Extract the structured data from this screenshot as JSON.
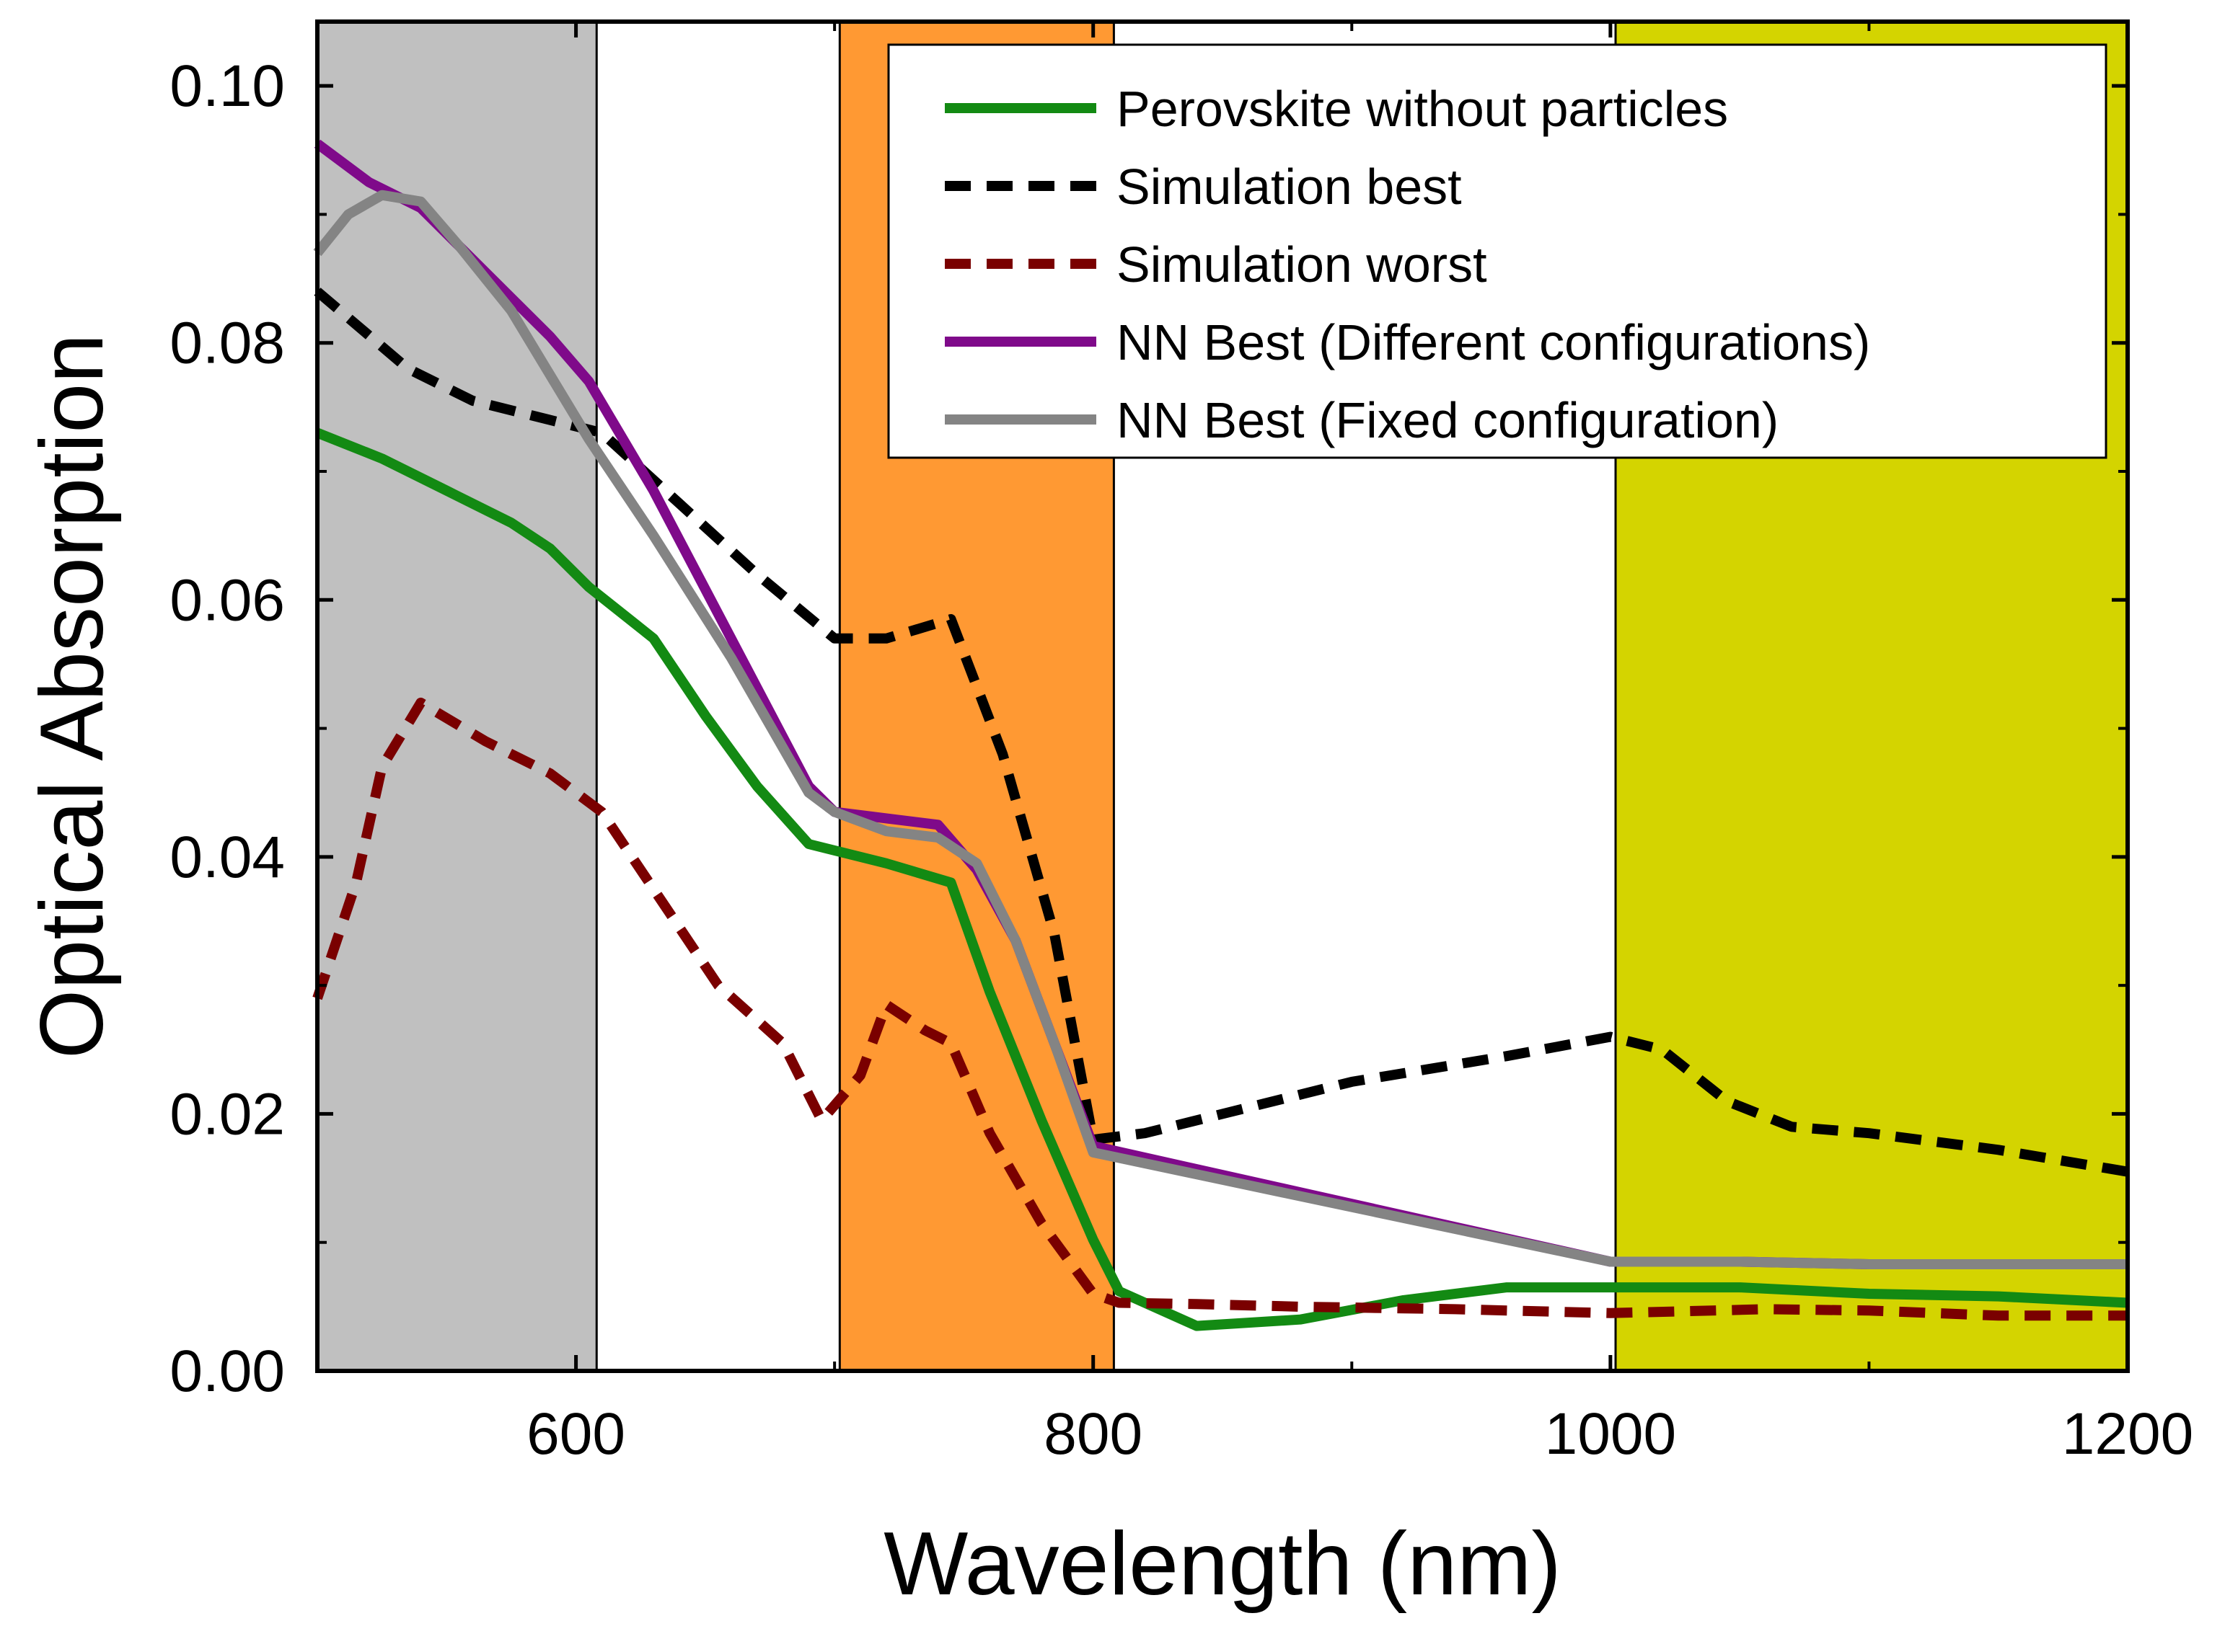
{
  "chart_data": {
    "type": "line",
    "title": "",
    "xlabel": "Wavelength (nm)",
    "ylabel": "Optical Absorption",
    "xlim": [
      500,
      1200
    ],
    "ylim": [
      0,
      0.105
    ],
    "x_ticks": [
      600,
      800,
      1000,
      1200
    ],
    "x_tick_labels": [
      "600",
      "800",
      "1000",
      "1200"
    ],
    "y_ticks": [
      0.0,
      0.02,
      0.04,
      0.06,
      0.08,
      0.1
    ],
    "y_tick_labels": [
      "0.00",
      "0.02",
      "0.04",
      "0.06",
      "0.08",
      "0.10"
    ],
    "grid": false,
    "legend_position": "top-right",
    "shaded_bands": [
      {
        "name": "gray-band",
        "x_start": 500,
        "x_end": 608,
        "color": "#c0c0c0"
      },
      {
        "name": "orange-band",
        "x_start": 702,
        "x_end": 808,
        "color": "#ff9933"
      },
      {
        "name": "yellow-band",
        "x_start": 1002,
        "x_end": 1200,
        "color": "#d4d400"
      }
    ],
    "series": [
      {
        "name": "Perovskite without particles",
        "color": "#138a13",
        "style": "solid",
        "x": [
          500,
          525,
          550,
          575,
          590,
          605,
          630,
          650,
          670,
          690,
          720,
          745,
          760,
          780,
          800,
          810,
          840,
          880,
          920,
          960,
          1000,
          1050,
          1100,
          1150,
          1200
        ],
        "y": [
          0.073,
          0.071,
          0.0685,
          0.066,
          0.064,
          0.061,
          0.057,
          0.051,
          0.0455,
          0.041,
          0.0395,
          0.038,
          0.0295,
          0.0195,
          0.0102,
          0.0062,
          0.0035,
          0.004,
          0.0055,
          0.0065,
          0.0065,
          0.0065,
          0.006,
          0.0058,
          0.0053
        ]
      },
      {
        "name": "Simulation best",
        "color": "#000000",
        "style": "dashed",
        "x": [
          500,
          535,
          560,
          590,
          610,
          640,
          670,
          700,
          720,
          745,
          765,
          785,
          800,
          820,
          860,
          900,
          960,
          1000,
          1020,
          1045,
          1070,
          1100,
          1150,
          1200
        ],
        "y": [
          0.084,
          0.078,
          0.0755,
          0.074,
          0.073,
          0.0675,
          0.062,
          0.057,
          0.057,
          0.0585,
          0.048,
          0.034,
          0.018,
          0.0185,
          0.0205,
          0.0225,
          0.0245,
          0.026,
          0.025,
          0.021,
          0.019,
          0.0185,
          0.0172,
          0.0155
        ]
      },
      {
        "name": "Simulation worst",
        "color": "#7a0000",
        "style": "dashed",
        "x": [
          500,
          515,
          525,
          540,
          565,
          590,
          610,
          630,
          655,
          680,
          695,
          710,
          720,
          735,
          745,
          760,
          780,
          800,
          810,
          840,
          880,
          940,
          1000,
          1060,
          1100,
          1150,
          1200
        ],
        "y": [
          0.029,
          0.038,
          0.047,
          0.052,
          0.049,
          0.0465,
          0.0435,
          0.0375,
          0.03,
          0.0255,
          0.0195,
          0.023,
          0.0285,
          0.0265,
          0.0255,
          0.0185,
          0.0115,
          0.006,
          0.0053,
          0.0052,
          0.005,
          0.0048,
          0.0045,
          0.0048,
          0.0047,
          0.0043,
          0.0043
        ]
      },
      {
        "name": "NN Best (Different configurations)",
        "color": "#7f0a8a",
        "style": "solid",
        "x": [
          500,
          520,
          540,
          555,
          575,
          590,
          605,
          630,
          660,
          690,
          700,
          720,
          740,
          755,
          770,
          785,
          800,
          1000,
          1050,
          1100,
          1150,
          1200
        ],
        "y": [
          0.0955,
          0.0925,
          0.0905,
          0.0875,
          0.0835,
          0.0805,
          0.077,
          0.0685,
          0.057,
          0.0455,
          0.0435,
          0.043,
          0.0425,
          0.039,
          0.0335,
          0.0255,
          0.0175,
          0.0085,
          0.0085,
          0.0083,
          0.0083,
          0.0083
        ]
      },
      {
        "name": "NN Best (Fixed configuration)",
        "color": "#848484",
        "style": "solid",
        "x": [
          500,
          512,
          525,
          540,
          555,
          575,
          590,
          605,
          630,
          660,
          690,
          700,
          720,
          740,
          755,
          770,
          785,
          800,
          1000,
          1050,
          1100,
          1150,
          1200
        ],
        "y": [
          0.087,
          0.09,
          0.0915,
          0.091,
          0.0875,
          0.0825,
          0.0775,
          0.0725,
          0.065,
          0.0555,
          0.045,
          0.0435,
          0.042,
          0.0415,
          0.0395,
          0.0335,
          0.0255,
          0.017,
          0.0085,
          0.0085,
          0.0083,
          0.0083,
          0.0083
        ]
      }
    ]
  }
}
